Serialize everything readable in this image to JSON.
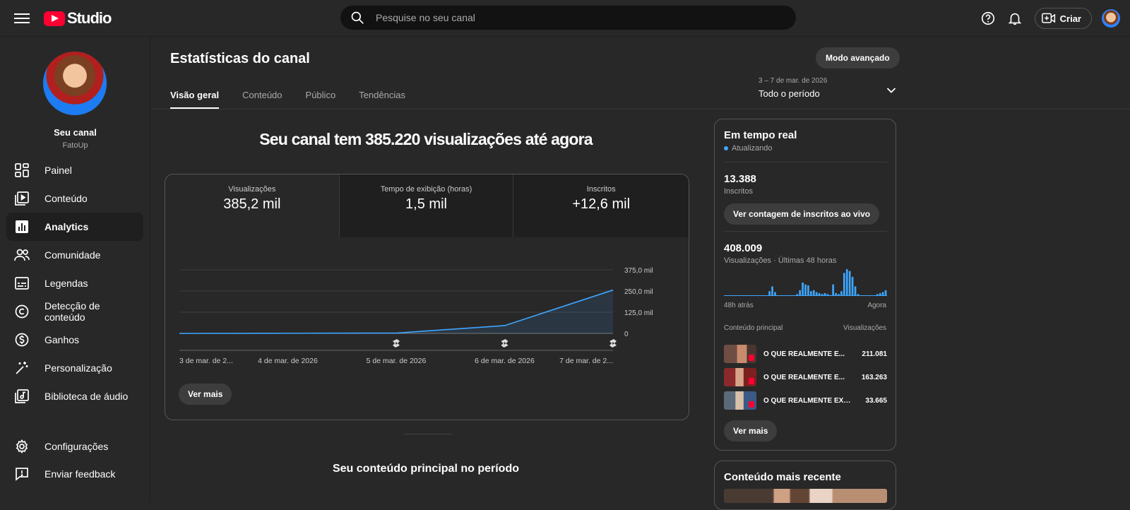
{
  "topbar": {
    "logo_text": "Studio",
    "search_placeholder": "Pesquise no seu canal",
    "create_label": "Criar"
  },
  "sidebar": {
    "channel_name": "Seu canal",
    "channel_handle": "FatoUp",
    "items": [
      {
        "label": "Painel",
        "icon": "dashboard-icon"
      },
      {
        "label": "Conteúdo",
        "icon": "content-icon"
      },
      {
        "label": "Analytics",
        "icon": "analytics-icon",
        "active": true
      },
      {
        "label": "Comunidade",
        "icon": "community-icon"
      },
      {
        "label": "Legendas",
        "icon": "subtitles-icon"
      },
      {
        "label": "Detecção de conteúdo",
        "icon": "copyright-icon"
      },
      {
        "label": "Ganhos",
        "icon": "earn-icon"
      },
      {
        "label": "Personalização",
        "icon": "customization-icon"
      },
      {
        "label": "Biblioteca de áudio",
        "icon": "audio-library-icon"
      }
    ],
    "footer_items": [
      {
        "label": "Configurações",
        "icon": "settings-icon"
      },
      {
        "label": "Enviar feedback",
        "icon": "feedback-icon"
      }
    ]
  },
  "main": {
    "title": "Estatísticas do canal",
    "advanced_label": "Modo avançado",
    "tabs": [
      "Visão geral",
      "Conteúdo",
      "Público",
      "Tendências"
    ],
    "period_range": "3 – 7 de mar. de 2026",
    "period_label": "Todo o período",
    "headline": "Seu canal tem 385.220 visualizações até agora",
    "metrics": [
      {
        "label": "Visualizações",
        "value": "385,2 mil"
      },
      {
        "label": "Tempo de exibição (horas)",
        "value": "1,5 mil"
      },
      {
        "label": "Inscritos",
        "value": "+12,6 mil"
      }
    ],
    "see_more": "Ver mais",
    "section_heading": "Seu conteúdo principal no período"
  },
  "chart_data": {
    "type": "area",
    "x": [
      "3 de mar. de 2...",
      "4 de mar. de 2026",
      "5 de mar. de 2026",
      "6 de mar. de 2026",
      "7 de mar. de 2..."
    ],
    "values": [
      0,
      1000,
      2000,
      46000,
      256000
    ],
    "y_ticks": [
      "375,0 mil",
      "250,0 mil",
      "125,0 mil",
      "0"
    ],
    "ylim": [
      0,
      375000
    ],
    "shorts_markers": [
      "5 de mar. de 2026",
      "6 de mar. de 2026",
      "7 de mar. de 2..."
    ],
    "color": "#3ea6ff"
  },
  "realtime": {
    "title": "Em tempo real",
    "status": "Atualizando",
    "subscribers_value": "13.388",
    "subscribers_label": "Inscritos",
    "live_count_button": "Ver contagem de inscritos ao vivo",
    "views_value": "408.009",
    "views_label": "Visualizações · Últimas 48 horas",
    "axis_start": "48h atrás",
    "axis_end": "Agora",
    "table_header_left": "Conteúdo principal",
    "table_header_right": "Visualizações",
    "rows": [
      {
        "title": "O QUE REALMENTE E...",
        "views": "211.081"
      },
      {
        "title": "O QUE REALMENTE E...",
        "views": "163.263"
      },
      {
        "title": "O QUE REALMENTE EXI...",
        "views": "33.665"
      }
    ],
    "see_more": "Ver mais",
    "hourly_bars": [
      0,
      0,
      0,
      0,
      0,
      0,
      0,
      0,
      0,
      0,
      0,
      0,
      0,
      0,
      0,
      0,
      5,
      10,
      4,
      0,
      0,
      0,
      0,
      0,
      0,
      0,
      2,
      6,
      14,
      12,
      11,
      5,
      6,
      4,
      3,
      2,
      3,
      2,
      1,
      12,
      3,
      2,
      5,
      24,
      28,
      26,
      20,
      10,
      2,
      0,
      0,
      0,
      0,
      0,
      0,
      2,
      3,
      4,
      6
    ]
  },
  "recent": {
    "title": "Conteúdo mais recente"
  }
}
